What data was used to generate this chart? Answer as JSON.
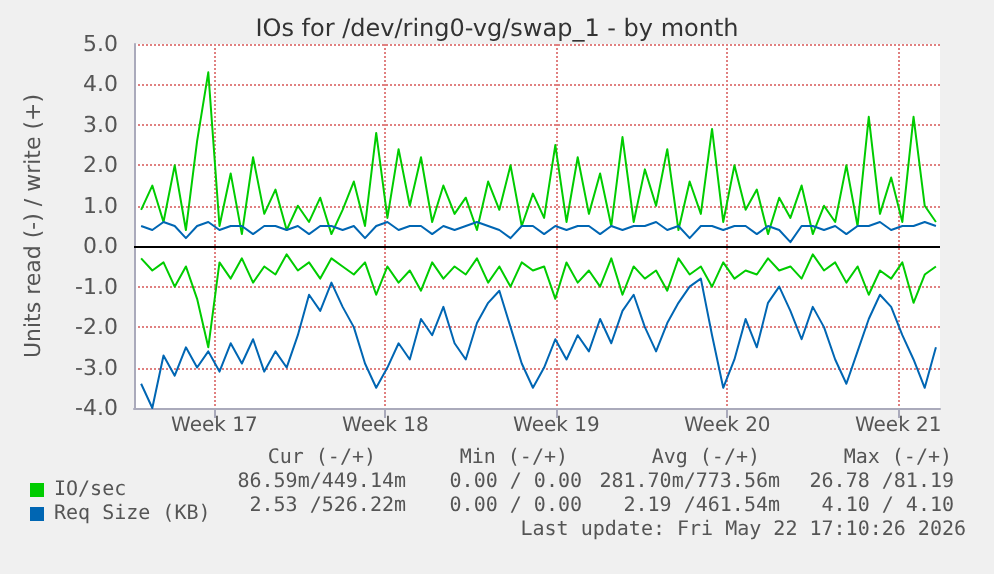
{
  "chart_data": {
    "type": "line",
    "title": "IOs for /dev/ring0-vg/swap_1 - by month",
    "ylabel": "Units read (-) / write (+)",
    "x": [
      "2026-04-20T00:00",
      "2026-04-20T11:00",
      "2026-04-20T22:00",
      "2026-04-21T09:00",
      "2026-04-21T20:00",
      "2026-04-22T07:00",
      "2026-04-22T18:00",
      "2026-04-23T05:00",
      "2026-04-23T16:00",
      "2026-04-24T03:00",
      "2026-04-24T14:00",
      "2026-04-25T01:00",
      "2026-04-25T12:00",
      "2026-04-25T23:00",
      "2026-04-26T10:00",
      "2026-04-26T21:00",
      "2026-04-27T08:00",
      "2026-04-27T19:00",
      "2026-04-28T06:00",
      "2026-04-28T17:00",
      "2026-04-29T04:00",
      "2026-04-29T15:00",
      "2026-04-30T02:00",
      "2026-04-30T13:00",
      "2026-05-01T00:00",
      "2026-05-01T11:00",
      "2026-05-01T22:00",
      "2026-05-02T09:00",
      "2026-05-02T20:00",
      "2026-05-03T07:00",
      "2026-05-03T18:00",
      "2026-05-04T05:00",
      "2026-05-04T16:00",
      "2026-05-05T03:00",
      "2026-05-05T14:00",
      "2026-05-06T01:00",
      "2026-05-06T12:00",
      "2026-05-06T23:00",
      "2026-05-07T10:00",
      "2026-05-07T21:00",
      "2026-05-08T08:00",
      "2026-05-08T19:00",
      "2026-05-09T06:00",
      "2026-05-09T17:00",
      "2026-05-10T04:00",
      "2026-05-10T15:00",
      "2026-05-11T02:00",
      "2026-05-11T13:00",
      "2026-05-12T00:00",
      "2026-05-12T11:00",
      "2026-05-12T22:00",
      "2026-05-13T09:00",
      "2026-05-13T20:00",
      "2026-05-14T07:00",
      "2026-05-14T18:00",
      "2026-05-15T05:00",
      "2026-05-15T16:00",
      "2026-05-16T03:00",
      "2026-05-16T14:00",
      "2026-05-17T01:00",
      "2026-05-17T12:00",
      "2026-05-17T23:00",
      "2026-05-18T10:00",
      "2026-05-18T21:00",
      "2026-05-19T08:00",
      "2026-05-19T19:00",
      "2026-05-20T06:00",
      "2026-05-20T17:00",
      "2026-05-21T04:00",
      "2026-05-21T15:00",
      "2026-05-22T02:00",
      "2026-05-22T13:00"
    ],
    "series": [
      {
        "name": "IO/sec",
        "color": "#00cc00",
        "values": [
          0.9,
          1.5,
          0.6,
          2.0,
          0.4,
          2.6,
          4.3,
          0.5,
          1.8,
          0.3,
          2.2,
          0.8,
          1.4,
          0.4,
          1.0,
          0.6,
          1.2,
          0.3,
          0.9,
          1.6,
          0.5,
          2.8,
          0.7,
          2.4,
          1.0,
          2.2,
          0.6,
          1.5,
          0.8,
          1.2,
          0.4,
          1.6,
          0.9,
          2.0,
          0.5,
          1.3,
          0.7,
          2.5,
          0.6,
          2.2,
          0.8,
          1.8,
          0.5,
          2.7,
          0.6,
          1.9,
          1.0,
          2.4,
          0.4,
          1.6,
          0.8,
          2.9,
          0.6,
          2.0,
          0.9,
          1.4,
          0.3,
          1.2,
          0.7,
          1.5,
          0.3,
          1.0,
          0.6,
          2.0,
          0.5,
          3.2,
          0.8,
          1.7,
          0.6,
          3.2,
          1.0,
          0.6
        ]
      },
      {
        "color": "#00cc00",
        "values": [
          -0.3,
          -0.6,
          -0.4,
          -1.0,
          -0.5,
          -1.3,
          -2.5,
          -0.4,
          -0.8,
          -0.3,
          -0.9,
          -0.5,
          -0.7,
          -0.2,
          -0.6,
          -0.4,
          -0.8,
          -0.3,
          -0.5,
          -0.7,
          -0.4,
          -1.2,
          -0.5,
          -0.9,
          -0.6,
          -1.1,
          -0.4,
          -0.8,
          -0.5,
          -0.7,
          -0.3,
          -0.9,
          -0.5,
          -1.0,
          -0.4,
          -0.6,
          -0.5,
          -1.3,
          -0.4,
          -0.9,
          -0.6,
          -1.0,
          -0.3,
          -1.2,
          -0.5,
          -0.8,
          -0.6,
          -1.1,
          -0.3,
          -0.7,
          -0.5,
          -1.0,
          -0.4,
          -0.8,
          -0.6,
          -0.7,
          -0.3,
          -0.6,
          -0.5,
          -0.8,
          -0.2,
          -0.6,
          -0.4,
          -0.9,
          -0.5,
          -1.2,
          -0.6,
          -0.8,
          -0.4,
          -1.4,
          -0.7,
          -0.5
        ]
      },
      {
        "name": "Req Size (KB)",
        "color": "#0066b3",
        "values": [
          0.5,
          0.4,
          0.6,
          0.5,
          0.2,
          0.5,
          0.6,
          0.4,
          0.5,
          0.5,
          0.3,
          0.5,
          0.5,
          0.4,
          0.5,
          0.3,
          0.5,
          0.5,
          0.4,
          0.5,
          0.2,
          0.5,
          0.6,
          0.4,
          0.5,
          0.5,
          0.3,
          0.5,
          0.4,
          0.5,
          0.6,
          0.5,
          0.4,
          0.2,
          0.5,
          0.5,
          0.3,
          0.5,
          0.4,
          0.5,
          0.5,
          0.3,
          0.5,
          0.4,
          0.5,
          0.5,
          0.6,
          0.4,
          0.5,
          0.2,
          0.5,
          0.5,
          0.4,
          0.5,
          0.5,
          0.3,
          0.5,
          0.4,
          0.1,
          0.5,
          0.5,
          0.4,
          0.5,
          0.3,
          0.5,
          0.5,
          0.6,
          0.4,
          0.5,
          0.5,
          0.6,
          0.5
        ]
      },
      {
        "color": "#0066b3",
        "values": [
          -3.4,
          -4.0,
          -2.7,
          -3.2,
          -2.5,
          -3.0,
          -2.6,
          -3.1,
          -2.4,
          -2.9,
          -2.3,
          -3.1,
          -2.6,
          -3.0,
          -2.2,
          -1.2,
          -1.6,
          -0.9,
          -1.5,
          -2.0,
          -2.9,
          -3.5,
          -3.0,
          -2.4,
          -2.8,
          -1.8,
          -2.2,
          -1.5,
          -2.4,
          -2.8,
          -1.9,
          -1.4,
          -1.1,
          -2.0,
          -2.9,
          -3.5,
          -3.0,
          -2.3,
          -2.8,
          -2.2,
          -2.6,
          -1.8,
          -2.4,
          -1.6,
          -1.2,
          -2.0,
          -2.6,
          -1.9,
          -1.4,
          -1.0,
          -0.8,
          -2.2,
          -3.5,
          -2.8,
          -1.8,
          -2.5,
          -1.4,
          -1.0,
          -1.6,
          -2.3,
          -1.5,
          -2.0,
          -2.8,
          -3.4,
          -2.6,
          -1.8,
          -1.2,
          -1.5,
          -2.2,
          -2.8,
          -3.5,
          -2.5
        ]
      }
    ],
    "xlim": [
      "2026-04-19T17:00",
      "2026-05-22T17:00"
    ],
    "xticks": [
      {
        "value": "2026-04-23",
        "label": "Week 17"
      },
      {
        "value": "2026-04-30",
        "label": "Week 18"
      },
      {
        "value": "2026-05-07",
        "label": "Week 19"
      },
      {
        "value": "2026-05-14",
        "label": "Week 20"
      },
      {
        "value": "2026-05-21",
        "label": "Week 21"
      }
    ],
    "ylim": [
      -4,
      5
    ],
    "yticks": [
      {
        "value": -4,
        "label": "-4.0"
      },
      {
        "value": -3,
        "label": "-3.0"
      },
      {
        "value": -2,
        "label": "-2.0"
      },
      {
        "value": -1,
        "label": "-1.0"
      },
      {
        "value": 0,
        "label": "0.0"
      },
      {
        "value": 1,
        "label": "1.0"
      },
      {
        "value": 2,
        "label": "2.0"
      },
      {
        "value": 3,
        "label": "3.0"
      },
      {
        "value": 4,
        "label": "4.0"
      },
      {
        "value": 5,
        "label": "5.0"
      }
    ],
    "ref_lines": [
      {
        "axis": "y",
        "value": 0,
        "color": "#000000"
      }
    ],
    "grid": true,
    "legend": "bottom left",
    "marker": "none",
    "line_style": "solid",
    "annotations": [
      "Cur (-/+)",
      "Min (-/+)",
      "Avg (-/+)",
      "Max (-/+)",
      "86.59m/449.14m",
      "0.00 / 0.00",
      "281.70m/773.56m",
      "26.78 /81.19",
      "2.53 /526.22m",
      "0.00 / 0.00",
      "2.19 /461.54m",
      "4.10 / 4.10",
      "Last update: Fri May 22 17:10:26 2026"
    ]
  }
}
